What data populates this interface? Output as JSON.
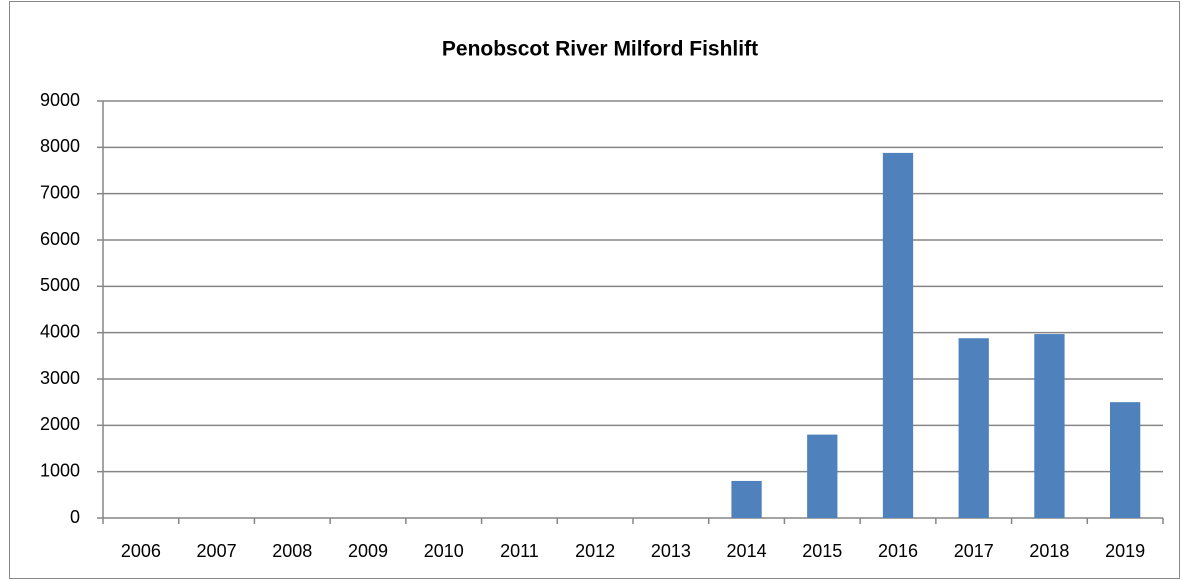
{
  "chart_data": {
    "type": "bar",
    "title": "Penobscot River Milford Fishlift",
    "categories": [
      "2006",
      "2007",
      "2008",
      "2009",
      "2010",
      "2011",
      "2012",
      "2013",
      "2014",
      "2015",
      "2016",
      "2017",
      "2018",
      "2019"
    ],
    "values": [
      0,
      0,
      0,
      0,
      0,
      0,
      0,
      0,
      800,
      1800,
      7880,
      3880,
      3970,
      2500
    ],
    "color": "#4f81bd",
    "ylim": [
      0,
      9000
    ],
    "yticks": [
      0,
      1000,
      2000,
      3000,
      4000,
      5000,
      6000,
      7000,
      8000,
      9000
    ],
    "grid": true
  }
}
